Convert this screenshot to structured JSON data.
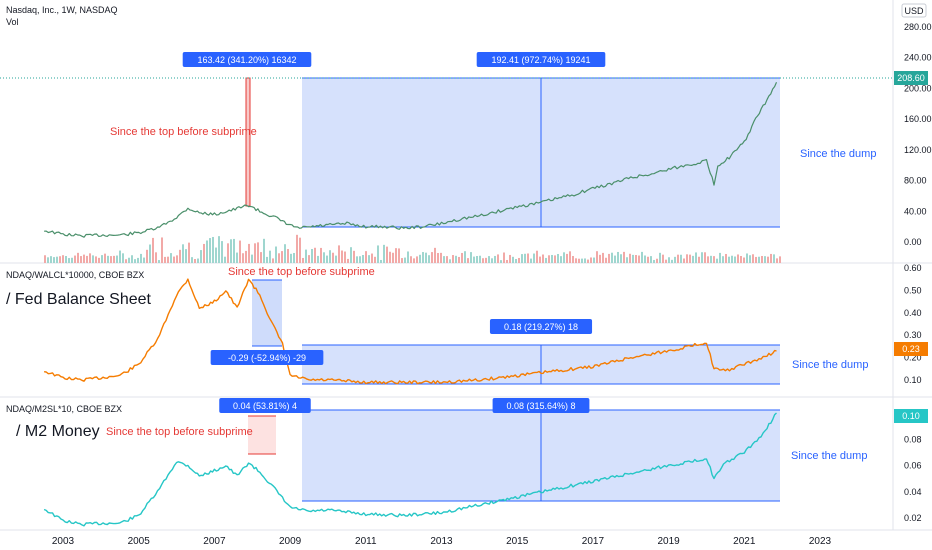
{
  "header": {
    "title": "Nasdaq, Inc., 1W, NASDAQ",
    "vol_label": "Vol",
    "currency": "USD"
  },
  "colors": {
    "up": "#26a69a",
    "down": "#ef5350",
    "range_fill": "#cfdcfb",
    "range_line": "#2962ff",
    "price_badge": "#26a69a",
    "ratio1_line": "#f57c00",
    "ratio2_line": "#26c6c6",
    "annotation_red": "#e53935",
    "annotation_blue": "#2962ff",
    "grid": "#e0e3eb"
  },
  "x_axis": {
    "labels": [
      "2003",
      "2005",
      "2007",
      "2009",
      "2011",
      "2013",
      "2015",
      "2017",
      "2019",
      "2021",
      "2023"
    ]
  },
  "panes": [
    {
      "id": "price",
      "label": "",
      "ticks": [
        "280.00",
        "240.00",
        "200.00",
        "160.00",
        "120.00",
        "80.00",
        "40.00",
        "0.00"
      ],
      "current": "208.60",
      "measure_left": "163.42 (341.20%) 16342",
      "measure_right": "192.41 (972.74%) 19241",
      "note_left": "Since the top before subprime",
      "note_right": "Since the dump"
    },
    {
      "id": "fed",
      "label": "NDAQ/WALCL*10000, CBOE BZX",
      "title": "/ Fed Balance Sheet",
      "ticks": [
        "0.60",
        "0.50",
        "0.40",
        "0.30",
        "0.20",
        "0.10"
      ],
      "current": "0.23",
      "measure_left": "-0.29 (-52.94%) -29",
      "measure_right": "0.18 (219.27%) 18",
      "note_left": "Since the top before subprime",
      "note_right": "Since the dump"
    },
    {
      "id": "m2",
      "label": "NDAQ/M2SL*10, CBOE BZX",
      "title": "/ M2 Money",
      "ticks": [
        "0.10",
        "0.08",
        "0.06",
        "0.04",
        "0.02"
      ],
      "current": "0.10",
      "measure_left": "0.04 (53.81%) 4",
      "measure_right": "0.08 (315.64%) 8",
      "note_left": "Since the top before subprime",
      "note_right": "Since the dump"
    }
  ],
  "chart_data": [
    {
      "type": "line",
      "pane": "price",
      "title": "Nasdaq, Inc., 1W, NASDAQ",
      "ylim": [
        0,
        280
      ],
      "x": [
        2002.5,
        2003,
        2003.5,
        2004,
        2004.5,
        2005,
        2005.5,
        2006,
        2006.3,
        2006.6,
        2007,
        2007.5,
        2007.9,
        2008.2,
        2008.6,
        2008.9,
        2009.2,
        2009.6,
        2010,
        2010.5,
        2011,
        2011.5,
        2012,
        2012.5,
        2013,
        2013.5,
        2014,
        2014.5,
        2015,
        2015.5,
        2016,
        2016.5,
        2017,
        2017.5,
        2018,
        2018.5,
        2019,
        2019.5,
        2020,
        2020.2,
        2020.3,
        2020.6,
        2021,
        2021.3,
        2021.6,
        2021.85
      ],
      "values": [
        15,
        10,
        8,
        9,
        9,
        12,
        18,
        32,
        44,
        38,
        36,
        42,
        48,
        40,
        32,
        24,
        18,
        20,
        22,
        24,
        20,
        20,
        18,
        20,
        24,
        30,
        34,
        40,
        46,
        50,
        56,
        62,
        70,
        76,
        84,
        88,
        95,
        100,
        106,
        75,
        100,
        110,
        130,
        160,
        185,
        208
      ],
      "current": 208.6
    },
    {
      "type": "line",
      "pane": "fed",
      "title": "NDAQ/WALCL*10000, CBOE BZX",
      "ylim": [
        0.05,
        0.62
      ],
      "x": [
        2002.5,
        2003,
        2003.5,
        2004,
        2004.5,
        2005,
        2005.5,
        2006,
        2006.3,
        2006.6,
        2007,
        2007.3,
        2007.6,
        2007.9,
        2008.2,
        2008.5,
        2008.8,
        2009,
        2009.5,
        2010,
        2011,
        2012,
        2013,
        2014,
        2015,
        2016,
        2017,
        2018,
        2019,
        2019.8,
        2020,
        2020.2,
        2020.5,
        2021,
        2021.5,
        2021.85
      ],
      "values": [
        0.14,
        0.11,
        0.1,
        0.11,
        0.12,
        0.17,
        0.28,
        0.48,
        0.55,
        0.42,
        0.45,
        0.5,
        0.42,
        0.55,
        0.48,
        0.36,
        0.26,
        0.12,
        0.1,
        0.1,
        0.09,
        0.09,
        0.09,
        0.1,
        0.12,
        0.14,
        0.16,
        0.2,
        0.23,
        0.26,
        0.27,
        0.15,
        0.14,
        0.17,
        0.2,
        0.23
      ],
      "current": 0.23
    },
    {
      "type": "line",
      "pane": "m2",
      "title": "NDAQ/M2SL*10, CBOE BZX",
      "ylim": [
        0.01,
        0.105
      ],
      "x": [
        2002.5,
        2003,
        2003.5,
        2004,
        2004.5,
        2005,
        2005.5,
        2006,
        2006.3,
        2006.6,
        2007,
        2007.3,
        2007.6,
        2007.9,
        2008.2,
        2008.6,
        2009,
        2009.5,
        2010,
        2011,
        2012,
        2013,
        2014,
        2015,
        2016,
        2017,
        2018,
        2019,
        2019.8,
        2020,
        2020.2,
        2020.5,
        2021,
        2021.5,
        2021.85
      ],
      "values": [
        0.027,
        0.018,
        0.015,
        0.016,
        0.016,
        0.022,
        0.04,
        0.063,
        0.06,
        0.052,
        0.056,
        0.06,
        0.052,
        0.062,
        0.055,
        0.042,
        0.028,
        0.025,
        0.026,
        0.023,
        0.022,
        0.024,
        0.03,
        0.036,
        0.042,
        0.048,
        0.054,
        0.06,
        0.064,
        0.066,
        0.05,
        0.062,
        0.07,
        0.084,
        0.1
      ],
      "current": 0.1
    }
  ]
}
